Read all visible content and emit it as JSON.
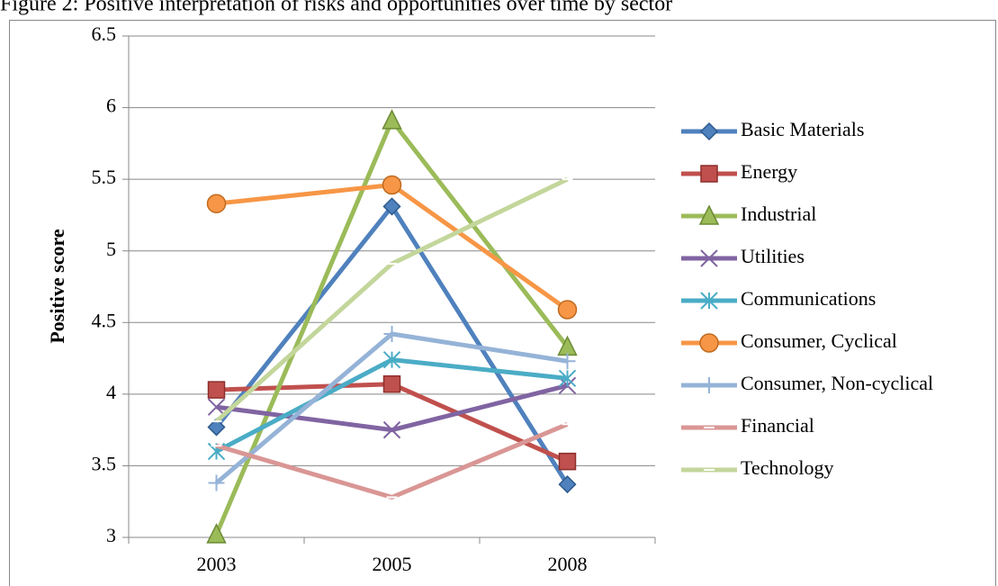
{
  "chart_data": {
    "type": "line",
    "title": "Figure 2: Positive interpretation of risks and opportunities over time by sector",
    "y_label": "Positive score",
    "categories": [
      "2003",
      "2005",
      "2008"
    ],
    "ylim": [
      3,
      6.5
    ],
    "yticks": [
      3,
      3.5,
      4,
      4.5,
      5,
      5.5,
      6,
      6.5
    ],
    "grid": true,
    "legend": "right",
    "series": [
      {
        "name": "Basic Materials",
        "color": "#4f81bd",
        "marker": "diamond",
        "values": [
          3.77,
          5.31,
          3.37
        ]
      },
      {
        "name": "Energy",
        "color": "#c0504d",
        "marker": "square",
        "values": [
          4.03,
          4.07,
          3.53
        ]
      },
      {
        "name": "Industrial",
        "color": "#9bbb59",
        "marker": "triangle",
        "values": [
          3.02,
          5.91,
          4.33
        ]
      },
      {
        "name": "Utilities",
        "color": "#8064a2",
        "marker": "x",
        "values": [
          3.91,
          3.75,
          4.06
        ]
      },
      {
        "name": "Communications",
        "color": "#4bacc6",
        "marker": "star",
        "values": [
          3.6,
          4.24,
          4.11
        ]
      },
      {
        "name": "Consumer, Cyclical",
        "color": "#f79646",
        "marker": "circle",
        "values": [
          5.33,
          5.46,
          4.59
        ]
      },
      {
        "name": "Consumer, Non-cyclical",
        "color": "#95b3d7",
        "marker": "plus",
        "values": [
          3.38,
          4.42,
          4.23
        ]
      },
      {
        "name": "Financial",
        "color": "#d99694",
        "marker": "dash",
        "values": [
          3.64,
          3.28,
          3.79
        ]
      },
      {
        "name": "Technology",
        "color": "#c3d69b",
        "marker": "dash",
        "values": [
          3.81,
          4.91,
          5.5
        ]
      }
    ]
  }
}
